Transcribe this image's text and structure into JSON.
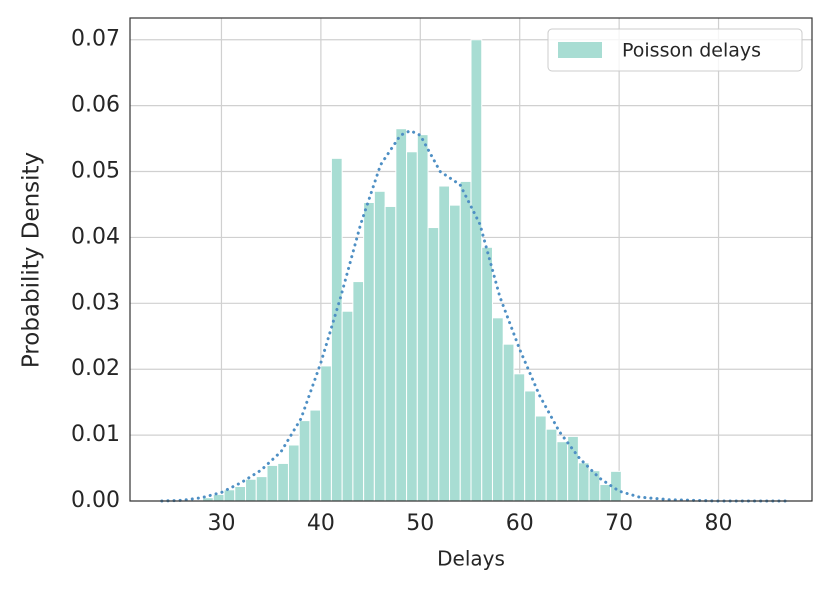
{
  "chart_data": {
    "type": "histogram",
    "xlabel": "Delays",
    "ylabel": "Probability Density",
    "bins": [
      28.1,
      29.18,
      30.26,
      31.34,
      32.42,
      33.5,
      34.58,
      35.66,
      36.74,
      37.82,
      38.9,
      39.98,
      41.06,
      42.14,
      43.22,
      44.3,
      45.38,
      46.46,
      47.54,
      48.62,
      49.7,
      50.78,
      51.86,
      52.94,
      54.02,
      55.1,
      56.18,
      57.26,
      58.34,
      59.42,
      60.5,
      61.58,
      62.66,
      63.74,
      64.82,
      65.9,
      66.98,
      68.06,
      69.14,
      70.22
    ],
    "series": [
      {
        "name": "Poisson delays",
        "color": "#a8ddd3",
        "values": [
          0.0005,
          0.001,
          0.0017,
          0.0022,
          0.0033,
          0.0037,
          0.0054,
          0.0057,
          0.0085,
          0.0122,
          0.0138,
          0.0205,
          0.052,
          0.0288,
          0.0333,
          0.0453,
          0.047,
          0.0447,
          0.0565,
          0.053,
          0.0556,
          0.0415,
          0.0478,
          0.0449,
          0.0485,
          0.07,
          0.0385,
          0.0278,
          0.0238,
          0.0193,
          0.0167,
          0.0129,
          0.0109,
          0.009,
          0.0098,
          0.0058,
          0.0046,
          0.0025,
          0.0045
        ]
      }
    ],
    "line": {
      "color": "#4e8fc4",
      "style": "dotted",
      "x": [
        24,
        26,
        28,
        30,
        32,
        34,
        36,
        38,
        40,
        42,
        44,
        46,
        48,
        49,
        50,
        52,
        54,
        56,
        58,
        60,
        62,
        64,
        66,
        68,
        70,
        72,
        75,
        80,
        87
      ],
      "values": [
        0,
        0.0001,
        0.0005,
        0.0013,
        0.0028,
        0.0047,
        0.0075,
        0.0125,
        0.021,
        0.031,
        0.042,
        0.051,
        0.0555,
        0.0562,
        0.0555,
        0.05,
        0.048,
        0.042,
        0.031,
        0.023,
        0.016,
        0.0105,
        0.0065,
        0.0035,
        0.0015,
        0.0006,
        0.0002,
        0,
        0
      ]
    },
    "xlim": [
      20.8,
      89.4
    ],
    "ylim": [
      0,
      0.0733
    ],
    "xticks": [
      30,
      40,
      50,
      60,
      70,
      80
    ],
    "yticks": [
      {
        "value": 0,
        "label": "0.00"
      },
      {
        "value": 0.01,
        "label": "0.01"
      },
      {
        "value": 0.02,
        "label": "0.02"
      },
      {
        "value": 0.03,
        "label": "0.03"
      },
      {
        "value": 0.04,
        "label": "0.04"
      },
      {
        "value": 0.05,
        "label": "0.05"
      },
      {
        "value": 0.06,
        "label": "0.06"
      },
      {
        "value": 0.07,
        "label": "0.07"
      }
    ],
    "grid": true,
    "legend": "upper right"
  }
}
